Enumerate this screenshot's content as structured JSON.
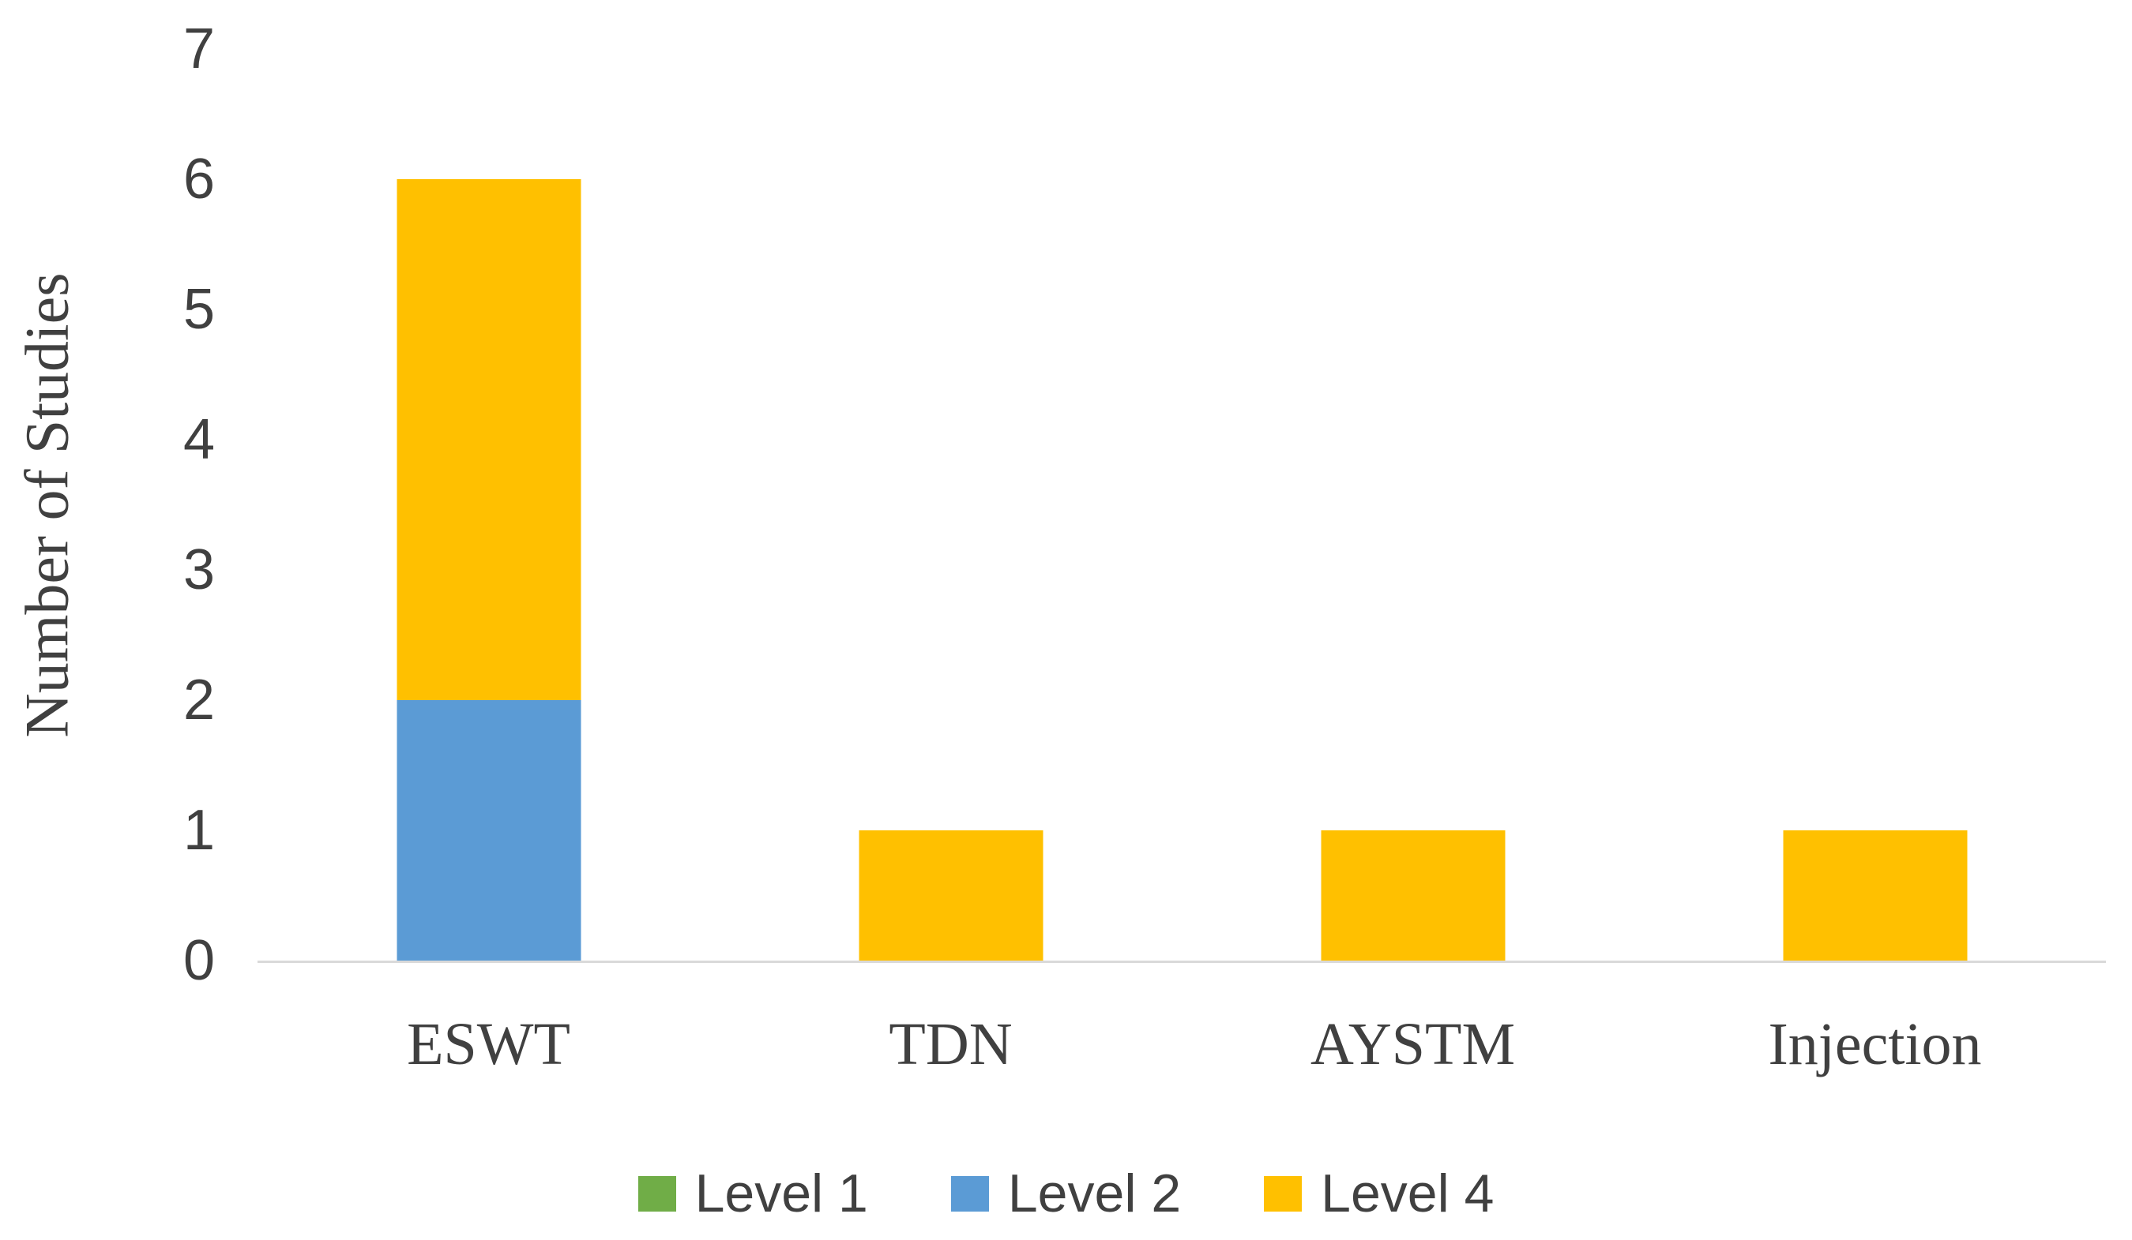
{
  "chart_data": {
    "type": "bar",
    "stacked": true,
    "title": "",
    "xlabel": "",
    "ylabel": "Number of Studies",
    "ylim": [
      0,
      7
    ],
    "yticks": [
      0,
      1,
      2,
      3,
      4,
      5,
      6,
      7
    ],
    "grid": false,
    "legend_position": "bottom",
    "axis_line_color": "#d9d9d9",
    "text_color": "#404040",
    "categories": [
      "ESWT",
      "TDN",
      "AYSTM",
      "Injection"
    ],
    "series": [
      {
        "name": "Level 1",
        "color": "#70AD47",
        "values": [
          0,
          0,
          0,
          0
        ]
      },
      {
        "name": "Level 2",
        "color": "#5B9BD5",
        "values": [
          2,
          0,
          0,
          0
        ]
      },
      {
        "name": "Level 4",
        "color": "#FFC000",
        "values": [
          4,
          1,
          1,
          1
        ]
      }
    ],
    "stack_totals": {
      "ESWT": 6,
      "TDN": 1,
      "AYSTM": 1,
      "Injection": 1
    }
  }
}
